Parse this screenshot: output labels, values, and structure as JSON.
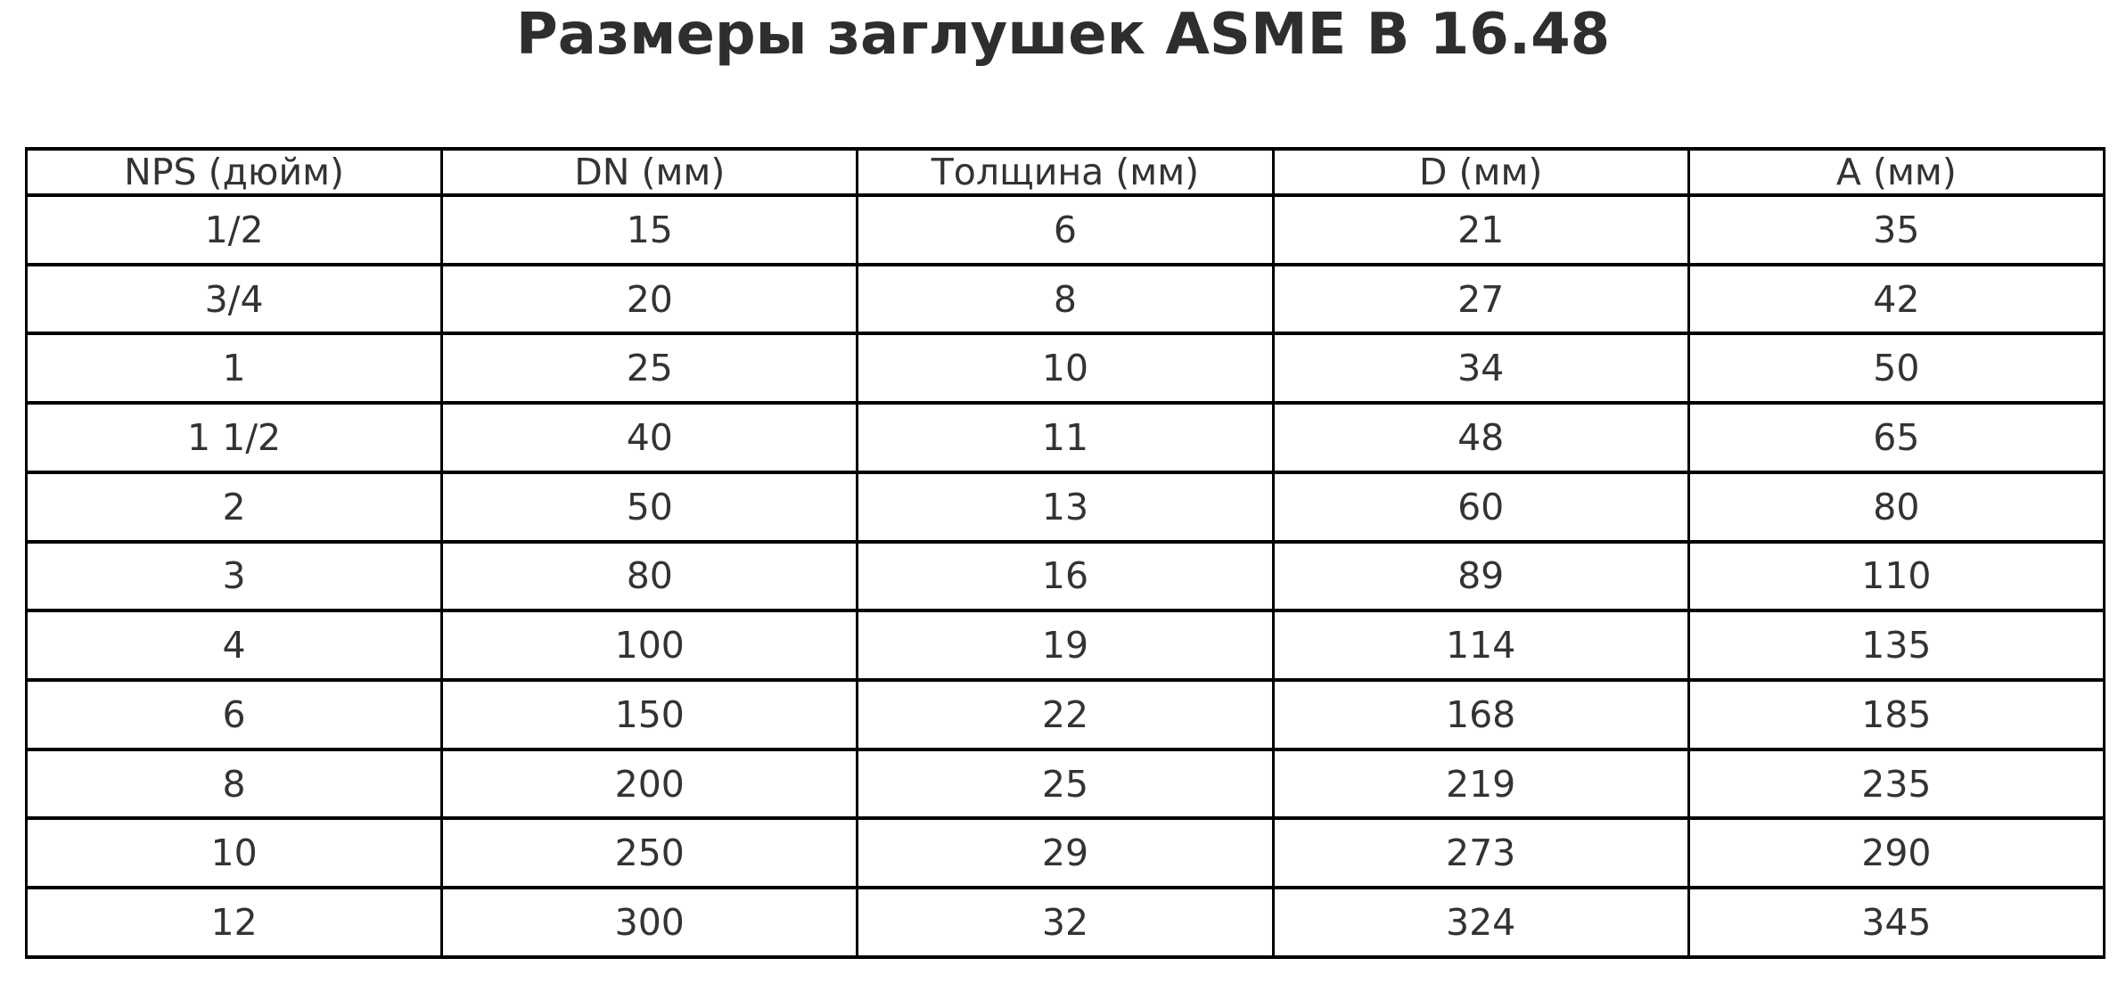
{
  "title": "Размеры заглушек ASME B 16.48",
  "chart_data": {
    "type": "table",
    "title": "Размеры заглушек ASME B 16.48",
    "columns": [
      "NPS (дюйм)",
      "DN (мм)",
      "Толщина (мм)",
      "D (мм)",
      "A (мм)"
    ],
    "rows": [
      [
        "1/2",
        "15",
        "6",
        "21",
        "35"
      ],
      [
        "3/4",
        "20",
        "8",
        "27",
        "42"
      ],
      [
        "1",
        "25",
        "10",
        "34",
        "50"
      ],
      [
        "1 1/2",
        "40",
        "11",
        "48",
        "65"
      ],
      [
        "2",
        "50",
        "13",
        "60",
        "80"
      ],
      [
        "3",
        "80",
        "16",
        "89",
        "110"
      ],
      [
        "4",
        "100",
        "19",
        "114",
        "135"
      ],
      [
        "6",
        "150",
        "22",
        "168",
        "185"
      ],
      [
        "8",
        "200",
        "25",
        "219",
        "235"
      ],
      [
        "10",
        "250",
        "29",
        "273",
        "290"
      ],
      [
        "12",
        "300",
        "32",
        "324",
        "345"
      ]
    ],
    "layout": {
      "grid": true,
      "columns_equal_width": true,
      "title_position": "top-center"
    }
  },
  "colors": {
    "background": "#ffffff",
    "border": "#000000",
    "cell_text": "#333333",
    "title_text": "#2e2e2e"
  }
}
